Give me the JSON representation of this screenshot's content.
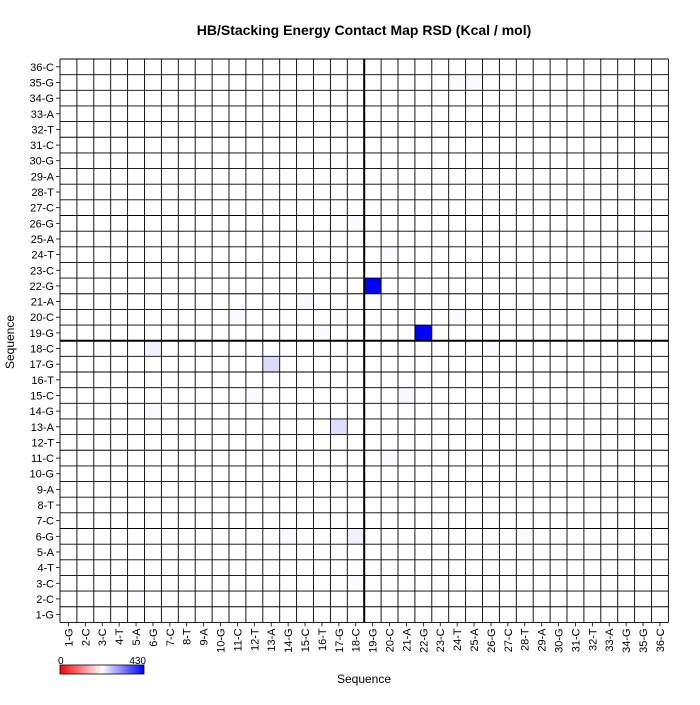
{
  "chart_data": {
    "type": "heatmap",
    "title": "HB/Stacking Energy Contact Map RSD (Kcal / mol)",
    "xlabel": "Sequence",
    "ylabel": "Sequence",
    "residues": [
      "1-G",
      "2-C",
      "3-C",
      "4-T",
      "5-A",
      "6-G",
      "7-C",
      "8-T",
      "9-A",
      "10-G",
      "11-C",
      "12-T",
      "13-A",
      "14-G",
      "15-C",
      "16-T",
      "17-G",
      "18-C",
      "19-G",
      "20-C",
      "21-A",
      "22-G",
      "23-C",
      "24-T",
      "25-A",
      "26-G",
      "27-C",
      "28-T",
      "29-A",
      "30-G",
      "31-C",
      "32-T",
      "33-A",
      "34-G",
      "35-G",
      "36-C"
    ],
    "color_scale": {
      "min": 0,
      "max": 430,
      "min_label": "0",
      "max_label": "430",
      "low_color": "#ff0000",
      "mid_color": "#ffffff",
      "high_color": "#0000ff"
    },
    "divider_after_index": 18,
    "cells": [
      {
        "x": "19-G",
        "y": "22-G",
        "value": 430
      },
      {
        "x": "22-G",
        "y": "19-G",
        "value": 430
      },
      {
        "x": "13-A",
        "y": "17-G",
        "value": 60
      },
      {
        "x": "17-G",
        "y": "13-A",
        "value": 55
      },
      {
        "x": "6-G",
        "y": "18-C",
        "value": 25
      },
      {
        "x": "18-C",
        "y": "6-G",
        "value": 25
      },
      {
        "x": "15-C",
        "y": "21-A",
        "value": 12
      },
      {
        "x": "21-A",
        "y": "15-C",
        "value": 12
      },
      {
        "x": "11-C",
        "y": "20-C",
        "value": 10
      },
      {
        "x": "20-C",
        "y": "11-C",
        "value": 10
      },
      {
        "x": "14-G",
        "y": "6-G",
        "value": 10
      },
      {
        "x": "6-G",
        "y": "14-G",
        "value": 10
      },
      {
        "x": "18-C",
        "y": "26-G",
        "value": 8
      },
      {
        "x": "26-G",
        "y": "18-C",
        "value": 8
      },
      {
        "x": "24-T",
        "y": "20-C",
        "value": 8
      },
      {
        "x": "20-C",
        "y": "24-T",
        "value": 8
      },
      {
        "x": "35-G",
        "y": "25-A",
        "value": 8
      },
      {
        "x": "25-A",
        "y": "35-G",
        "value": 8
      },
      {
        "x": "26-G",
        "y": "18-C",
        "value": 8
      },
      {
        "x": "12-T",
        "y": "15-C",
        "value": 6
      },
      {
        "x": "28-T",
        "y": "6-G",
        "value": 6
      },
      {
        "x": "16-T",
        "y": "19-G",
        "value": 6
      },
      {
        "x": "17-G",
        "y": "20-C",
        "value": 5
      },
      {
        "x": "24-T",
        "y": "35-G",
        "value": 5
      },
      {
        "x": "3-C",
        "y": "18-C",
        "value": 5
      },
      {
        "x": "18-C",
        "y": "3-C",
        "value": 5
      },
      {
        "x": "5-A",
        "y": "2-C",
        "value": 5
      },
      {
        "x": "2-C",
        "y": "5-A",
        "value": 5
      }
    ]
  }
}
